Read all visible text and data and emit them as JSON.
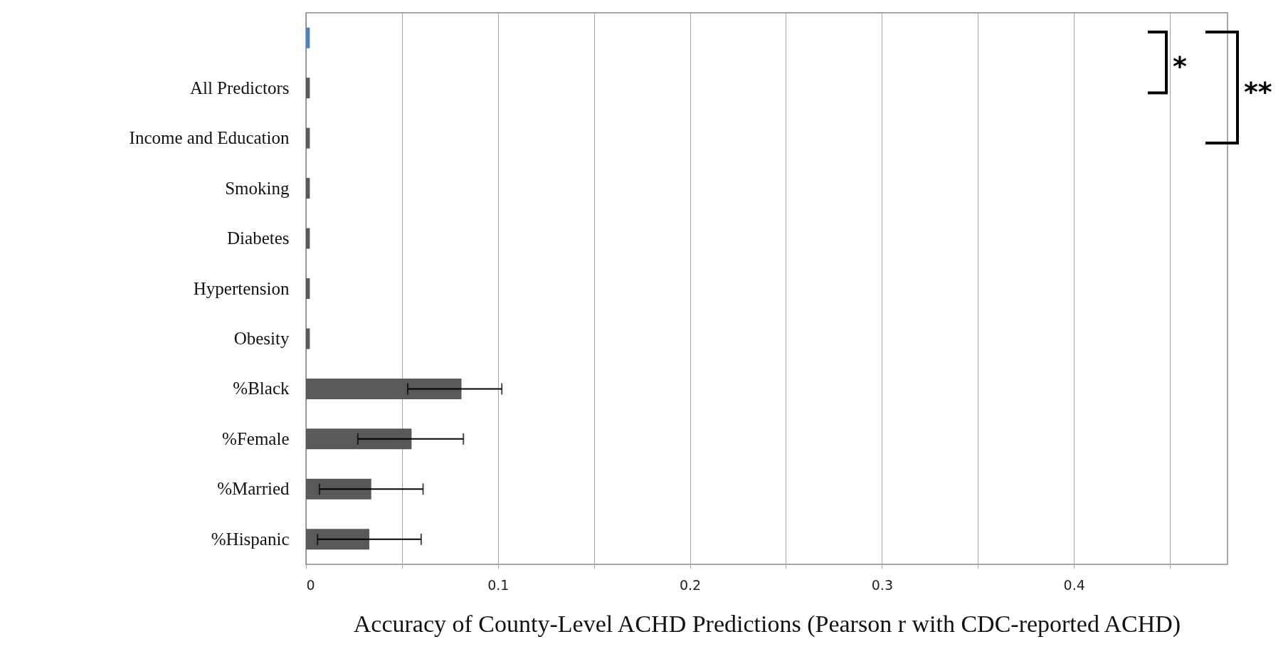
{
  "chart_data": {
    "type": "bar",
    "orientation": "horizontal",
    "xlabel": "Accuracy  of County-Level  ACHD  Predictions (Pearson r with CDC-reported  ACHD)",
    "categories": [
      null,
      "All Predictors",
      "Income and Education",
      "Smoking",
      "Diabetes",
      "Hypertension",
      "Obesity",
      "%Black",
      "%Female",
      "%Married",
      "%Hispanic"
    ],
    "values": [
      0.002,
      0.002,
      0.002,
      0.002,
      0.002,
      0.002,
      0.002,
      0.081,
      0.055,
      0.034,
      0.033
    ],
    "colors": [
      "#4f81bd",
      "#595959",
      "#595959",
      "#595959",
      "#595959",
      "#595959",
      "#595959",
      "#595959",
      "#595959",
      "#595959",
      "#595959"
    ],
    "errors": [
      null,
      null,
      null,
      null,
      null,
      null,
      null,
      [
        0.053,
        0.102
      ],
      [
        0.027,
        0.082
      ],
      [
        0.007,
        0.061
      ],
      [
        0.006,
        0.06
      ]
    ],
    "xlim": [
      0,
      0.48
    ],
    "xticks": [
      0,
      {
        "value": 0.05,
        "label": null
      },
      0.1,
      {
        "value": 0.15,
        "label": null
      },
      0.2,
      {
        "value": 0.25,
        "label": null
      },
      0.3,
      {
        "value": 0.35,
        "label": null
      },
      0.4,
      {
        "value": 0.45,
        "label": null
      }
    ],
    "grid": "x",
    "annotations": [
      "*",
      "**"
    ]
  }
}
